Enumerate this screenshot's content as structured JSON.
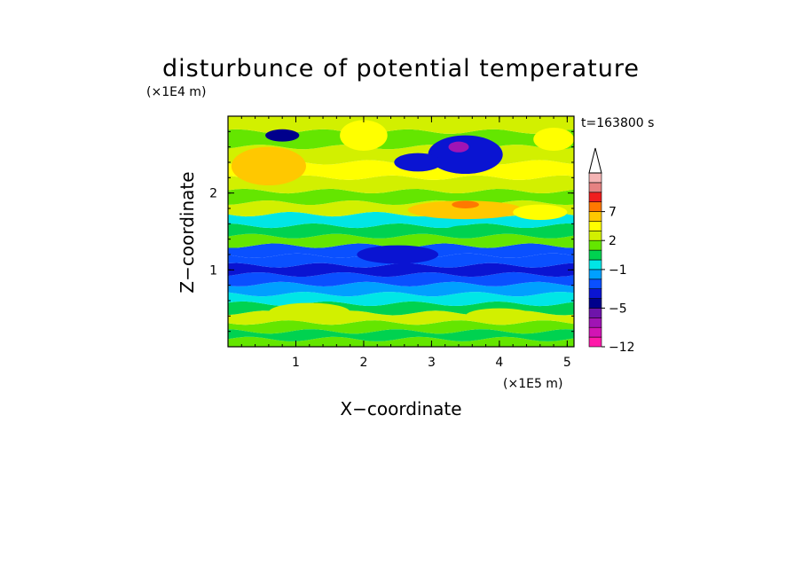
{
  "chart_data": {
    "type": "heatmap",
    "title": "disturbunce of potential temperature",
    "time_label": "t=163800 s",
    "xlabel": "X−coordinate",
    "ylabel": "Z−coordinate",
    "x_scale_note": "(×1E5 m)",
    "y_scale_note": "(×1E4 m)",
    "xlim": [
      0,
      5.1
    ],
    "ylim": [
      0,
      3.0
    ],
    "x_ticks": [
      "1",
      "2",
      "3",
      "4",
      "5"
    ],
    "y_ticks": [
      "1",
      "2"
    ],
    "colorbar": {
      "levels": [
        -12,
        -11,
        -9,
        -7,
        -5,
        -4,
        -3,
        -2,
        -1,
        0,
        1,
        2,
        3,
        5,
        7,
        9,
        11
      ],
      "tick_labels": [
        "−12",
        "−5",
        "−1",
        "2",
        "7"
      ],
      "colors": [
        "#ff1aaa",
        "#d214b4",
        "#a014b4",
        "#6e14aa",
        "#00008c",
        "#0a14d2",
        "#0a50ff",
        "#00a0ff",
        "#00e6e6",
        "#00d250",
        "#64e600",
        "#d2f000",
        "#ffff00",
        "#ffc800",
        "#ff7800",
        "#f01e1e",
        "#e68282",
        "#f5b4b4"
      ],
      "extend_top": true
    },
    "bands": [
      {
        "z": 0.05,
        "value": 1.5
      },
      {
        "z": 0.15,
        "value": 0.5
      },
      {
        "z": 0.25,
        "value": 1.5
      },
      {
        "z": 0.38,
        "value": 2.5
      },
      {
        "z": 0.5,
        "value": 0.5
      },
      {
        "z": 0.62,
        "value": -0.5
      },
      {
        "z": 0.75,
        "value": -1.5
      },
      {
        "z": 0.88,
        "value": -2.5
      },
      {
        "z": 1.0,
        "value": -3.5
      },
      {
        "z": 1.12,
        "value": -2.5
      },
      {
        "z": 1.25,
        "value": -3.0
      },
      {
        "z": 1.38,
        "value": 1.0
      },
      {
        "z": 1.5,
        "value": 0.0
      },
      {
        "z": 1.65,
        "value": -1.0
      },
      {
        "z": 1.8,
        "value": 2.0
      },
      {
        "z": 1.95,
        "value": 1.0
      },
      {
        "z": 2.1,
        "value": 2.5
      },
      {
        "z": 2.3,
        "value": 3.5
      },
      {
        "z": 2.5,
        "value": 2.0
      },
      {
        "z": 2.7,
        "value": 1.5
      },
      {
        "z": 2.9,
        "value": 2.0
      }
    ],
    "blobs": [
      {
        "x": 0.6,
        "z": 2.35,
        "rx": 0.55,
        "rz": 0.25,
        "value": 5.0
      },
      {
        "x": 0.8,
        "z": 2.75,
        "rx": 0.25,
        "rz": 0.08,
        "value": -4.5
      },
      {
        "x": 2.0,
        "z": 2.75,
        "rx": 0.35,
        "rz": 0.2,
        "value": 4.0
      },
      {
        "x": 3.5,
        "z": 2.5,
        "rx": 0.55,
        "rz": 0.25,
        "value": -4.0
      },
      {
        "x": 3.4,
        "z": 2.6,
        "rx": 0.15,
        "rz": 0.07,
        "value": -7.5
      },
      {
        "x": 2.8,
        "z": 2.4,
        "rx": 0.35,
        "rz": 0.12,
        "value": -3.5
      },
      {
        "x": 3.5,
        "z": 1.78,
        "rx": 0.85,
        "rz": 0.12,
        "value": 5.0
      },
      {
        "x": 3.5,
        "z": 1.85,
        "rx": 0.2,
        "rz": 0.05,
        "value": 8.0
      },
      {
        "x": 4.8,
        "z": 2.7,
        "rx": 0.3,
        "rz": 0.15,
        "value": 4.0
      },
      {
        "x": 4.6,
        "z": 1.75,
        "rx": 0.4,
        "rz": 0.1,
        "value": 4.0
      },
      {
        "x": 3.5,
        "z": 1.5,
        "rx": 0.3,
        "rz": 0.08,
        "value": 0.2
      },
      {
        "x": 2.5,
        "z": 1.2,
        "rx": 0.6,
        "rz": 0.12,
        "value": -3.5
      },
      {
        "x": 1.2,
        "z": 0.45,
        "rx": 0.6,
        "rz": 0.12,
        "value": 2.5
      },
      {
        "x": 4.0,
        "z": 0.4,
        "rx": 0.5,
        "rz": 0.1,
        "value": 2.5
      }
    ]
  }
}
